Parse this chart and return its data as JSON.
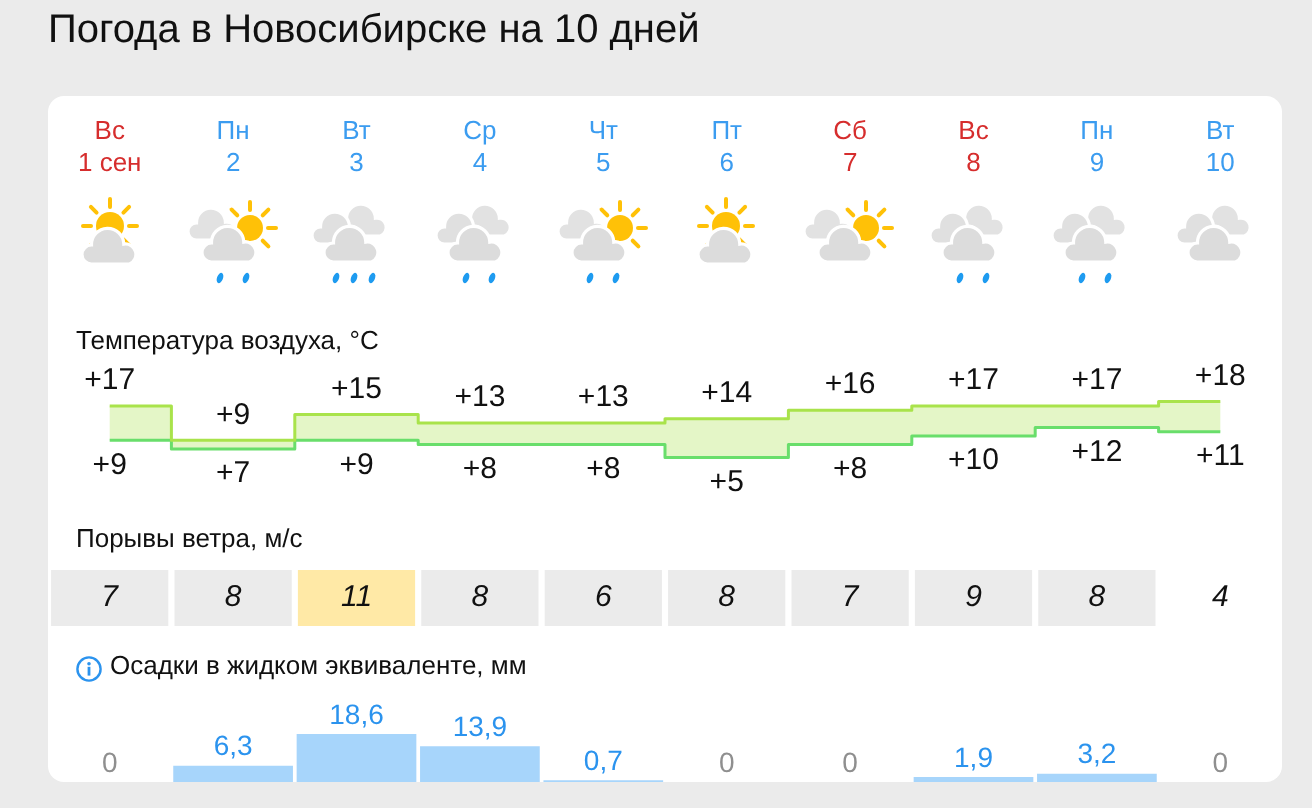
{
  "chart_data": [
    {
      "type": "step",
      "title": "Погода в Новосибирске на 10 дней",
      "subtitle": "Температура воздуха, °C",
      "categories": [
        "Вс 1 сен",
        "Пн 2",
        "Вт 3",
        "Ср 4",
        "Чт 5",
        "Пт 6",
        "Сб 7",
        "Вс 8",
        "Пн 9",
        "Вт 10"
      ],
      "series": [
        {
          "color": "#a9e34b",
          "values": [
            17,
            9,
            15,
            13,
            13,
            14,
            16,
            17,
            17,
            18
          ],
          "lower": [
            9,
            7,
            9,
            8,
            8,
            5,
            8,
            10,
            12,
            11
          ],
          "upper": [
            17,
            9,
            15,
            13,
            13,
            14,
            16,
            17,
            17,
            18
          ],
          "value_labels": [
            "+17",
            "+9",
            "+15",
            "+13",
            "+13",
            "+14",
            "+16",
            "+17",
            "+17",
            "+18"
          ]
        },
        {
          "color": "#69de6b",
          "values": [
            9,
            7,
            9,
            8,
            8,
            5,
            8,
            10,
            12,
            11
          ],
          "value_labels": [
            "+9",
            "+7",
            "+9",
            "+8",
            "+8",
            "+5",
            "+8",
            "+10",
            "+12",
            "+11"
          ]
        }
      ],
      "tick_labels": "x"
    },
    {
      "type": "other",
      "title": "Порывы ветра, м/с",
      "values": [
        7,
        8,
        11,
        8,
        6,
        8,
        7,
        9,
        8,
        4
      ],
      "colors": [
        "#ebebeb",
        "#ebebeb",
        "#ffe9a6",
        "#ebebeb",
        "#ebebeb",
        "#ebebeb",
        "#ebebeb",
        "#ebebeb",
        "#ebebeb",
        null
      ],
      "data_labels": true
    },
    {
      "type": "bar",
      "title": "Осадки в жидком эквиваленте, мм",
      "categories": [
        null,
        null,
        null,
        null,
        null,
        null,
        null,
        null,
        null,
        null
      ],
      "values": [
        0,
        6.3,
        18.6,
        13.9,
        0.7,
        0,
        0,
        1.9,
        3.2,
        0
      ],
      "color": "#a7d5fb",
      "value_labels": [
        "0",
        "6,3",
        "18,6",
        "13,9",
        "0,7",
        "0",
        "0",
        "1,9",
        "3,2",
        "0"
      ],
      "tick_labels": false
    }
  ]
}
